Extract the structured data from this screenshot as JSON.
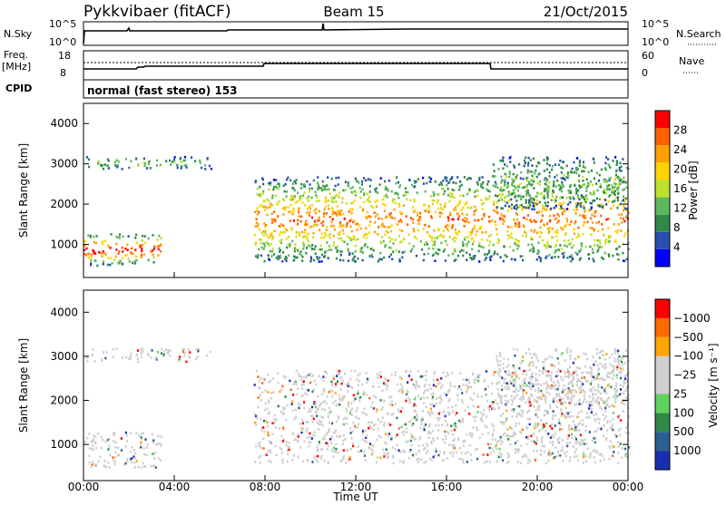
{
  "header": {
    "title": "Pykkvibaer (fitACF)",
    "beam": "Beam 15",
    "date": "21/Oct/2015",
    "cpid_label": "CPID",
    "cpid_text": "normal (fast stereo) 153"
  },
  "top_panels": {
    "nsky": {
      "label": "N.Sky",
      "tick_top": "10^5",
      "tick_bottom": "10^0",
      "right_label": "N.Search",
      "right_tick_top": "10^5",
      "right_tick_bottom": "10^0"
    },
    "freq": {
      "label": "Freq.",
      "unit": "[MHz]",
      "tick_top": "18",
      "tick_bottom": "8",
      "right_label": "Nave",
      "right_tick_top": "60",
      "right_tick_bottom": "0"
    }
  },
  "colors": {
    "power": [
      "#0000ff",
      "#2a4fb0",
      "#2f8a4a",
      "#5cb85c",
      "#bfe02a",
      "#ffd400",
      "#ffa000",
      "#ff6000",
      "#ff0000"
    ],
    "velocity": [
      "#ff0000",
      "#ff6a00",
      "#ffa500",
      "#cfcfcf",
      "#cfcfcf",
      "#5fd35f",
      "#2f8a4a",
      "#2a6090",
      "#1a2fb0"
    ]
  },
  "chart_data": [
    {
      "type": "heatmap",
      "name": "power-panel",
      "xlabel": "",
      "ylabel": "Slant Range [km]",
      "ylim": [
        180,
        4500
      ],
      "yticks": [
        "1000",
        "2000",
        "3000",
        "4000"
      ],
      "xlim_hours": [
        0,
        24
      ],
      "colorbar": {
        "label": "Power [dB]",
        "ticks": [
          "4",
          "8",
          "12",
          "16",
          "20",
          "24",
          "28"
        ],
        "range": [
          0,
          30
        ]
      },
      "echo_bands_hours": [
        {
          "t0": 0.0,
          "t1": 3.4,
          "r0": 500,
          "r1": 1300,
          "value": 18
        },
        {
          "t0": 0.1,
          "t1": 5.6,
          "r0": 2900,
          "r1": 3200,
          "value": 6
        },
        {
          "t0": 7.5,
          "t1": 24.0,
          "r0": 600,
          "r1": 2700,
          "value": 14
        },
        {
          "t0": 18.0,
          "t1": 24.0,
          "r0": 1900,
          "r1": 3200,
          "value": 6
        }
      ]
    },
    {
      "type": "heatmap",
      "name": "velocity-panel",
      "xlabel": "Time UT",
      "ylabel": "Slant Range [km]",
      "ylim": [
        180,
        4500
      ],
      "yticks": [
        "1000",
        "2000",
        "3000",
        "4000"
      ],
      "xticks": [
        "00:00",
        "04:00",
        "08:00",
        "12:00",
        "16:00",
        "20:00",
        "00:00"
      ],
      "colorbar": {
        "label": "Velocity [m s⁻¹]",
        "ticks": [
          "1000",
          "500",
          "100",
          "25",
          "−25",
          "−100",
          "−500",
          "−1000"
        ]
      }
    }
  ]
}
